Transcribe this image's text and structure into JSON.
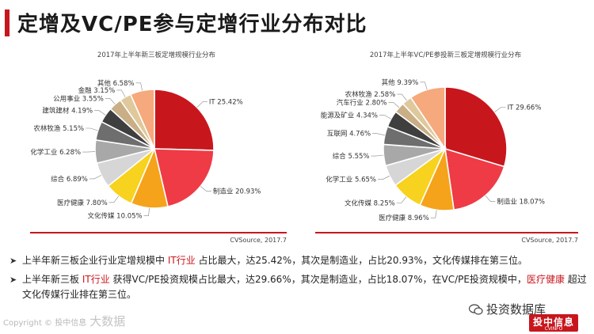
{
  "page": {
    "title": "定增及VC/PE参与定增行业分布对比"
  },
  "chart_data": [
    {
      "type": "pie",
      "title": "2017年上半年新三板定增规模行业分布",
      "source": "CVSource, 2017.7",
      "slices": [
        {
          "label": "IT",
          "pct": "25.42%",
          "value": 25.42,
          "color": "#c8161d"
        },
        {
          "label": "制造业",
          "pct": "20.93%",
          "value": 20.93,
          "color": "#ee3b46"
        },
        {
          "label": "文化传媒",
          "pct": "10.05%",
          "value": 10.05,
          "color": "#f5a31a"
        },
        {
          "label": "医疗健康",
          "pct": "7.80%",
          "value": 7.8,
          "color": "#f7d21e"
        },
        {
          "label": "综合",
          "pct": "6.89%",
          "value": 6.89,
          "color": "#d6d6d6"
        },
        {
          "label": "化学工业",
          "pct": "6.28%",
          "value": 6.28,
          "color": "#a8a8a8"
        },
        {
          "label": "农林牧渔",
          "pct": "5.15%",
          "value": 5.15,
          "color": "#6e6e6e"
        },
        {
          "label": "建筑建材",
          "pct": "4.19%",
          "value": 4.19,
          "color": "#3f3f3f"
        },
        {
          "label": "公用事业",
          "pct": "3.55%",
          "value": 3.55,
          "color": "#c9ae86"
        },
        {
          "label": "金融",
          "pct": "3.15%",
          "value": 3.15,
          "color": "#dfc89b"
        },
        {
          "label": "其他",
          "pct": "6.58%",
          "value": 6.58,
          "color": "#f5a97c"
        }
      ]
    },
    {
      "type": "pie",
      "title": "2017年上半年VC/PE参投新三板定增规模行业分布",
      "source": "CVSource, 2017.7",
      "slices": [
        {
          "label": "IT",
          "pct": "29.66%",
          "value": 29.66,
          "color": "#c8161d"
        },
        {
          "label": "制造业",
          "pct": "18.07%",
          "value": 18.07,
          "color": "#ee3b46"
        },
        {
          "label": "医疗健康",
          "pct": "8.96%",
          "value": 8.96,
          "color": "#f5a31a"
        },
        {
          "label": "文化传媒",
          "pct": "8.25%",
          "value": 8.25,
          "color": "#f7d21e"
        },
        {
          "label": "化学工业",
          "pct": "5.65%",
          "value": 5.65,
          "color": "#d6d6d6"
        },
        {
          "label": "综合",
          "pct": "5.55%",
          "value": 5.55,
          "color": "#a8a8a8"
        },
        {
          "label": "互联网",
          "pct": "4.76%",
          "value": 4.76,
          "color": "#6e6e6e"
        },
        {
          "label": "能源及矿业",
          "pct": "4.34%",
          "value": 4.34,
          "color": "#3f3f3f"
        },
        {
          "label": "汽车行业",
          "pct": "2.80%",
          "value": 2.8,
          "color": "#c9ae86"
        },
        {
          "label": "农林牧渔",
          "pct": "2.58%",
          "value": 2.58,
          "color": "#dfc89b"
        },
        {
          "label": "其他",
          "pct": "9.39%",
          "value": 9.39,
          "color": "#f5a97c"
        }
      ]
    }
  ],
  "bullets": [
    {
      "a": "上半年新三板企业行业定增规模中 ",
      "b": "IT行业",
      "c": " 占比最大，达25.42%，其次是制造业，占比20.93%，文化传媒排在第三位。"
    },
    {
      "a": "上半年新三板 ",
      "b": "IT行业",
      "c": " 获得VC/PE投资规模占比最大，达29.66%，其次是制造业，占比18.07%，在VC/PE投资规模中，",
      "d": "医疗健康",
      "e": " 超过文化传媒行业排在第三位。"
    }
  ],
  "watermarks": {
    "left_small": "Copyright © 投中信息",
    "left_big": "大数据",
    "wechat": "投资数据库",
    "logo_main": "投中信息",
    "logo_sub": "CVINFO"
  }
}
